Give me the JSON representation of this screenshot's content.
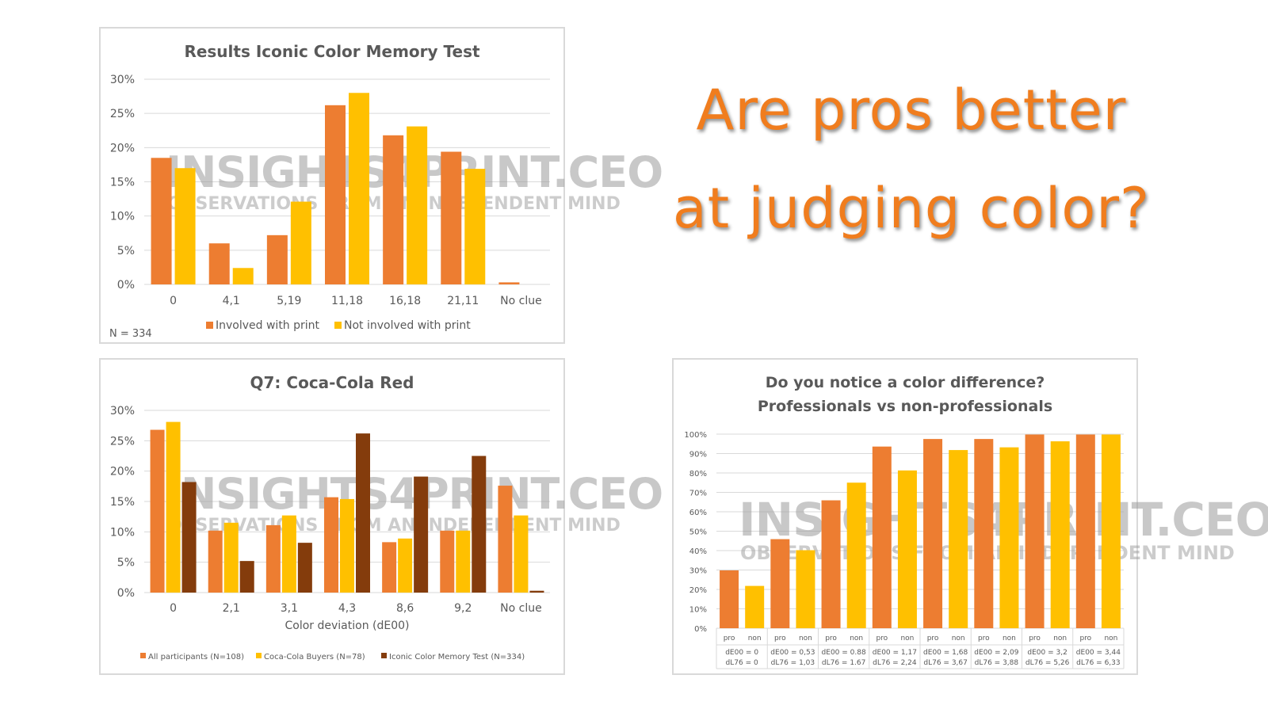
{
  "headline": {
    "line1": "Are pros better",
    "line2": "at judging color?"
  },
  "watermark": {
    "main": "INSIGHTS4PRINT.CEO",
    "sub": "OBSERVATIONS FROM AN INDEPENDENT MIND"
  },
  "colors": {
    "orange": "#ed7d31",
    "yellow": "#ffc000",
    "brown": "#843c0c",
    "grid": "#d9d9d9",
    "text": "#595959",
    "headline": "#f07d1e"
  },
  "chart_data": [
    {
      "type": "bar",
      "title": "Results Iconic Color Memory Test",
      "categories": [
        "0",
        "4,1",
        "5,19",
        "11,18",
        "16,18",
        "21,11",
        "No clue"
      ],
      "series": [
        {
          "name": "Involved with print",
          "color": "#ed7d31",
          "values": [
            18.5,
            6.0,
            7.2,
            26.2,
            21.8,
            19.4,
            0.3
          ]
        },
        {
          "name": "Not involved with print",
          "color": "#ffc000",
          "values": [
            17.0,
            2.4,
            12.1,
            28.0,
            23.1,
            16.9,
            0
          ]
        }
      ],
      "yticks": [
        "0%",
        "5%",
        "10%",
        "15%",
        "20%",
        "25%",
        "30%"
      ],
      "ylim": [
        0,
        30
      ],
      "note": "N = 334",
      "legend_position": "bottom"
    },
    {
      "type": "bar",
      "title": "Q7: Coca-Cola Red",
      "categories": [
        "0",
        "2,1",
        "3,1",
        "4,3",
        "8,6",
        "9,2",
        "No clue"
      ],
      "xlabel": "Color deviation (dE00)",
      "series": [
        {
          "name": "All participants (N=108)",
          "color": "#ed7d31",
          "values": [
            26.8,
            10.2,
            11.1,
            15.7,
            8.3,
            10.2,
            17.6
          ]
        },
        {
          "name": "Coca-Cola Buyers (N=78)",
          "color": "#ffc000",
          "values": [
            28.1,
            11.5,
            12.7,
            15.4,
            8.9,
            10.2,
            12.7
          ]
        },
        {
          "name": "Iconic Color Memory Test (N=334)",
          "color": "#843c0c",
          "values": [
            18.2,
            5.2,
            8.2,
            26.2,
            19.1,
            22.5,
            0.3
          ]
        }
      ],
      "yticks": [
        "0%",
        "5%",
        "10%",
        "15%",
        "20%",
        "25%",
        "30%"
      ],
      "ylim": [
        0,
        30
      ],
      "legend_position": "bottom"
    },
    {
      "type": "bar",
      "title": [
        "Do you notice a color difference?",
        "Professionals vs non-professionals"
      ],
      "groups": [
        {
          "labels": [
            "pro",
            "non"
          ],
          "values": [
            29.8,
            21.8
          ],
          "de00": "dE00 = 0",
          "dl76": "dL76 = 0"
        },
        {
          "labels": [
            "pro",
            "non"
          ],
          "values": [
            45.9,
            40.2
          ],
          "de00": "dE00 = 0,53",
          "dl76": "dL76 = 1,03"
        },
        {
          "labels": [
            "pro",
            "non"
          ],
          "values": [
            65.9,
            75.0
          ],
          "de00": "dE00 = 0.88",
          "dl76": "dL76 = 1.67"
        },
        {
          "labels": [
            "pro",
            "non"
          ],
          "values": [
            93.6,
            81.3
          ],
          "de00": "dE00 = 1,17",
          "dl76": "dL76 = 2,24"
        },
        {
          "labels": [
            "pro",
            "non"
          ],
          "values": [
            97.5,
            91.8
          ],
          "de00": "dE00 = 1,68",
          "dl76": "dL76 = 3,67"
        },
        {
          "labels": [
            "pro",
            "non"
          ],
          "values": [
            97.5,
            93.2
          ],
          "de00": "dE00 = 2,09",
          "dl76": "dL76 = 3,88"
        },
        {
          "labels": [
            "pro",
            "non"
          ],
          "values": [
            99.8,
            96.3
          ],
          "de00": "dE00 = 3,2",
          "dl76": "dL76 = 5,26"
        },
        {
          "labels": [
            "pro",
            "non"
          ],
          "values": [
            99.8,
            99.8
          ],
          "de00": "dE00 = 3,44",
          "dl76": "dL76 = 6,33"
        }
      ],
      "series_colors": [
        "#ed7d31",
        "#ffc000"
      ],
      "yticks": [
        "0%",
        "10%",
        "20%",
        "30%",
        "40%",
        "50%",
        "60%",
        "70%",
        "80%",
        "90%",
        "100%"
      ],
      "ylim": [
        0,
        100
      ]
    }
  ]
}
